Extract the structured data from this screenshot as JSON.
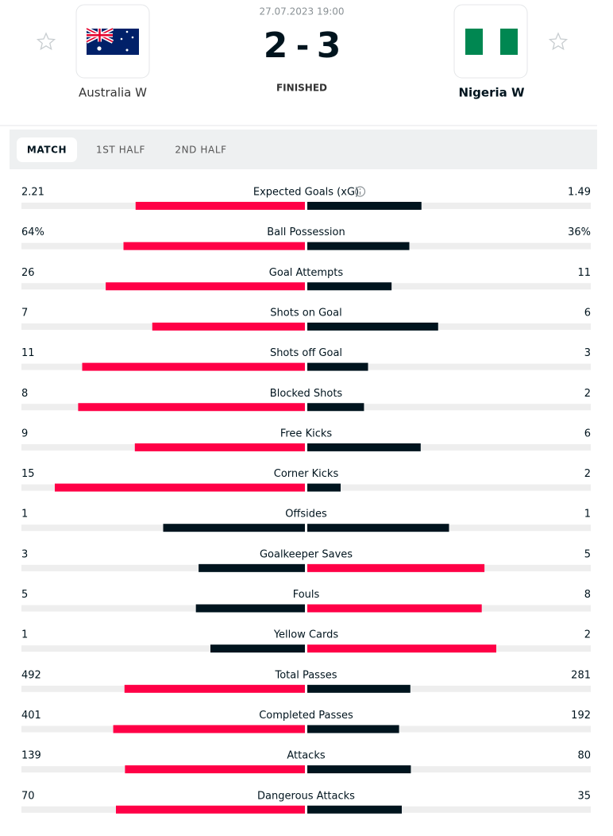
{
  "header": {
    "date": "27.07.2023 19:00",
    "home_score": 2,
    "separator": "-",
    "away_score": 3,
    "status": "FINISHED",
    "home_team": "Australia W",
    "away_team": "Nigeria W"
  },
  "tabs": [
    "MATCH",
    "1ST HALF",
    "2ND HALF"
  ],
  "colors": {
    "higher": "#ff0046",
    "lower": "#00141e",
    "track": "#eeeeee"
  },
  "stats": [
    {
      "name": "Expected Goals (xG)",
      "home": 2.21,
      "away": 1.49
    },
    {
      "name": "Ball Possession",
      "home": 64,
      "away": 36,
      "home_label": "64%",
      "away_label": "36%"
    },
    {
      "name": "Goal Attempts",
      "home": 26,
      "away": 11
    },
    {
      "name": "Shots on Goal",
      "home": 7,
      "away": 6
    },
    {
      "name": "Shots off Goal",
      "home": 11,
      "away": 3
    },
    {
      "name": "Blocked Shots",
      "home": 8,
      "away": 2
    },
    {
      "name": "Free Kicks",
      "home": 9,
      "away": 6
    },
    {
      "name": "Corner Kicks",
      "home": 15,
      "away": 2
    },
    {
      "name": "Offsides",
      "home": 1,
      "away": 1
    },
    {
      "name": "Goalkeeper Saves",
      "home": 3,
      "away": 5
    },
    {
      "name": "Fouls",
      "home": 5,
      "away": 8
    },
    {
      "name": "Yellow Cards",
      "home": 1,
      "away": 2
    },
    {
      "name": "Total Passes",
      "home": 492,
      "away": 281
    },
    {
      "name": "Completed Passes",
      "home": 401,
      "away": 192
    },
    {
      "name": "Attacks",
      "home": 139,
      "away": 80
    },
    {
      "name": "Dangerous Attacks",
      "home": 70,
      "away": 35
    }
  ]
}
